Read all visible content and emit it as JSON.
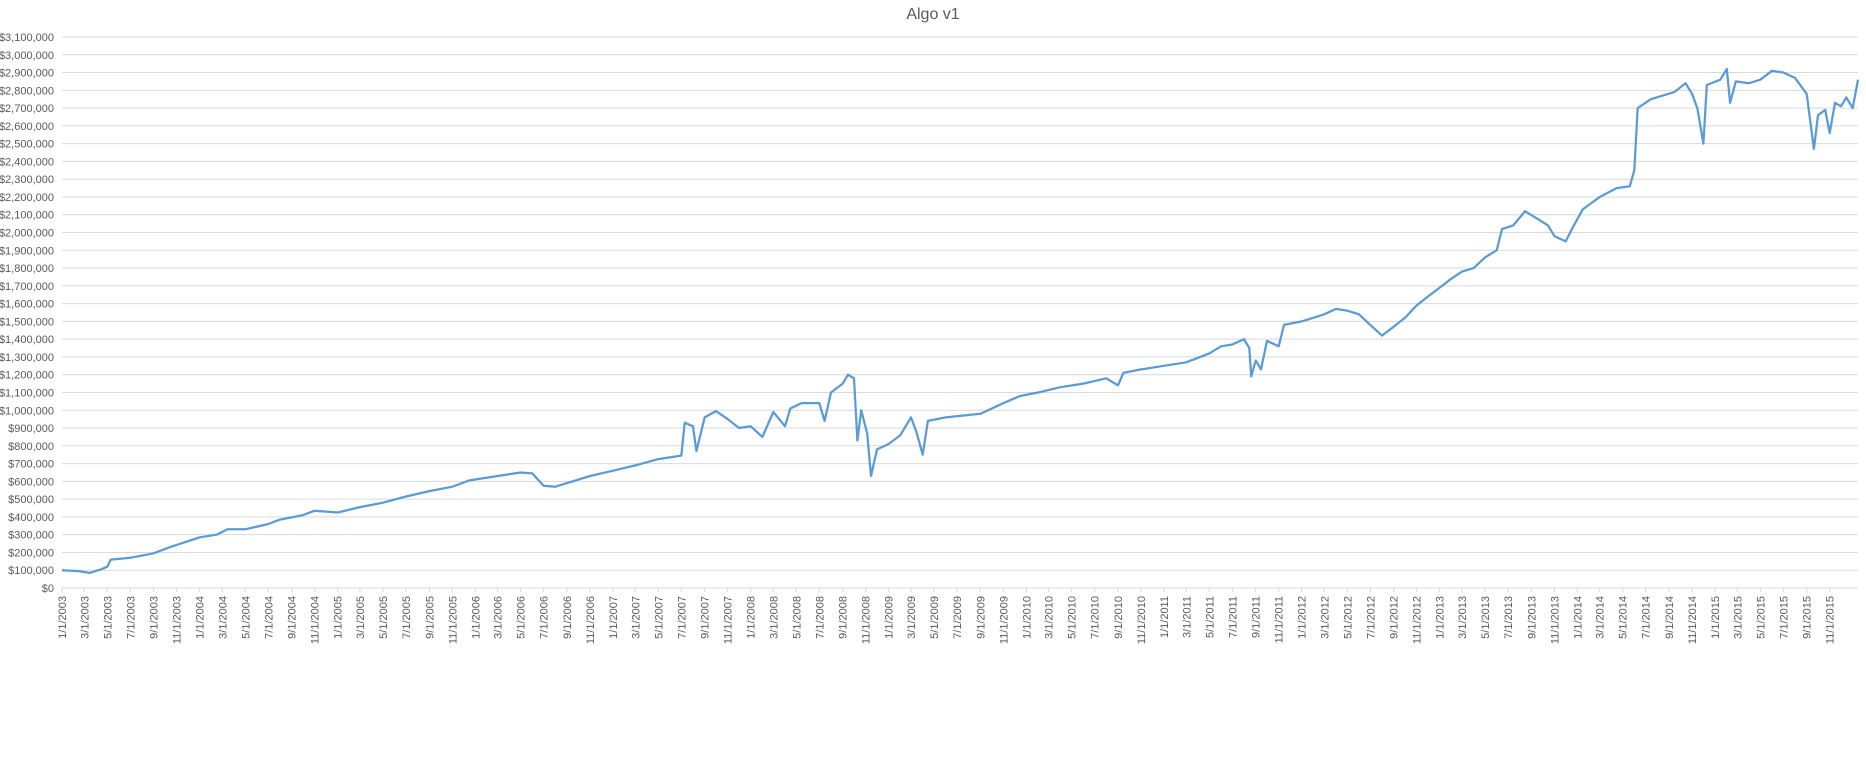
{
  "chart_data": {
    "type": "line",
    "title": "Algo v1",
    "xlabel": "",
    "ylabel": "",
    "ylim": [
      0,
      3100000
    ],
    "grid": true,
    "legend": "none",
    "y_ticks": [
      "$0",
      "$100,000",
      "$200,000",
      "$300,000",
      "$400,000",
      "$500,000",
      "$600,000",
      "$700,000",
      "$800,000",
      "$900,000",
      "$1,000,000",
      "$1,100,000",
      "$1,200,000",
      "$1,300,000",
      "$1,400,000",
      "$1,500,000",
      "$1,600,000",
      "$1,700,000",
      "$1,800,000",
      "$1,900,000",
      "$2,000,000",
      "$2,100,000",
      "$2,200,000",
      "$2,300,000",
      "$2,400,000",
      "$2,500,000",
      "$2,600,000",
      "$2,700,000",
      "$2,800,000",
      "$2,900,000",
      "$3,000,000",
      "$3,100,000"
    ],
    "x_ticks": [
      "1/1/2003",
      "3/1/2003",
      "5/1/2003",
      "7/1/2003",
      "9/1/2003",
      "11/1/2003",
      "1/1/2004",
      "3/1/2004",
      "5/1/2004",
      "7/1/2004",
      "9/1/2004",
      "11/1/2004",
      "1/1/2005",
      "3/1/2005",
      "5/1/2005",
      "7/1/2005",
      "9/1/2005",
      "11/1/2005",
      "1/1/2006",
      "3/1/2006",
      "5/1/2006",
      "7/1/2006",
      "9/1/2006",
      "11/1/2006",
      "1/1/2007",
      "3/1/2007",
      "5/1/2007",
      "7/1/2007",
      "9/1/2007",
      "11/1/2007",
      "1/1/2008",
      "3/1/2008",
      "5/1/2008",
      "7/1/2008",
      "9/1/2008",
      "11/1/2008",
      "1/1/2009",
      "3/1/2009",
      "5/1/2009",
      "7/1/2009",
      "9/1/2009",
      "11/1/2009",
      "1/1/2010",
      "3/1/2010",
      "5/1/2010",
      "7/1/2010",
      "9/1/2010",
      "11/1/2010",
      "1/1/2011",
      "3/1/2011",
      "5/1/2011",
      "7/1/2011",
      "9/1/2011",
      "11/1/2011",
      "1/1/2012",
      "3/1/2012",
      "5/1/2012",
      "7/1/2012",
      "9/1/2012",
      "11/1/2012",
      "1/1/2013",
      "3/1/2013",
      "5/1/2013",
      "7/1/2013",
      "9/1/2013",
      "11/1/2013",
      "1/1/2014",
      "3/1/2014",
      "5/1/2014",
      "7/1/2014",
      "9/1/2014",
      "11/1/2014",
      "1/1/2015",
      "3/1/2015",
      "5/1/2015",
      "7/1/2015",
      "9/1/2015",
      "11/1/2015"
    ],
    "colors": {
      "line": "#5B9BD5",
      "grid": "#D9D9D9",
      "text": "#595959"
    },
    "series": [
      {
        "values": [
          [
            "1/1/2003",
            100000
          ],
          [
            "2/15/2003",
            95000
          ],
          [
            "3/15/2003",
            85000
          ],
          [
            "4/15/2003",
            105000
          ],
          [
            "5/1/2003",
            120000
          ],
          [
            "5/10/2003",
            160000
          ],
          [
            "7/1/2003",
            170000
          ],
          [
            "9/1/2003",
            195000
          ],
          [
            "10/15/2003",
            230000
          ],
          [
            "1/1/2004",
            285000
          ],
          [
            "2/15/2004",
            300000
          ],
          [
            "3/15/2004",
            330000
          ],
          [
            "5/1/2004",
            330000
          ],
          [
            "7/1/2004",
            360000
          ],
          [
            "8/1/2004",
            385000
          ],
          [
            "10/1/2004",
            410000
          ],
          [
            "11/1/2004",
            435000
          ],
          [
            "1/1/2005",
            425000
          ],
          [
            "3/1/2005",
            455000
          ],
          [
            "5/1/2005",
            480000
          ],
          [
            "7/1/2005",
            515000
          ],
          [
            "9/1/2005",
            545000
          ],
          [
            "11/1/2005",
            570000
          ],
          [
            "12/15/2005",
            605000
          ],
          [
            "3/1/2006",
            630000
          ],
          [
            "5/1/2006",
            650000
          ],
          [
            "6/1/2006",
            645000
          ],
          [
            "7/1/2006",
            575000
          ],
          [
            "8/1/2006",
            570000
          ],
          [
            "9/1/2006",
            590000
          ],
          [
            "11/1/2006",
            630000
          ],
          [
            "1/1/2007",
            660000
          ],
          [
            "3/1/2007",
            690000
          ],
          [
            "5/1/2007",
            725000
          ],
          [
            "7/1/2007",
            745000
          ],
          [
            "7/10/2007",
            930000
          ],
          [
            "8/1/2007",
            910000
          ],
          [
            "8/10/2007",
            770000
          ],
          [
            "9/1/2007",
            960000
          ],
          [
            "10/1/2007",
            995000
          ],
          [
            "11/1/2007",
            950000
          ],
          [
            "12/1/2007",
            900000
          ],
          [
            "1/1/2008",
            910000
          ],
          [
            "2/1/2008",
            850000
          ],
          [
            "3/1/2008",
            990000
          ],
          [
            "4/1/2008",
            910000
          ],
          [
            "4/15/2008",
            1010000
          ],
          [
            "5/15/2008",
            1040000
          ],
          [
            "7/1/2008",
            1040000
          ],
          [
            "7/15/2008",
            940000
          ],
          [
            "8/1/2008",
            1100000
          ],
          [
            "9/1/2008",
            1150000
          ],
          [
            "9/15/2008",
            1200000
          ],
          [
            "10/1/2008",
            1180000
          ],
          [
            "10/10/2008",
            830000
          ],
          [
            "10/20/2008",
            1000000
          ],
          [
            "11/5/2008",
            870000
          ],
          [
            "11/15/2008",
            630000
          ],
          [
            "12/1/2008",
            780000
          ],
          [
            "1/1/2009",
            810000
          ],
          [
            "2/1/2009",
            860000
          ],
          [
            "3/1/2009",
            960000
          ],
          [
            "3/15/2009",
            880000
          ],
          [
            "4/1/2009",
            750000
          ],
          [
            "4/15/2009",
            940000
          ],
          [
            "6/1/2009",
            960000
          ],
          [
            "9/1/2009",
            980000
          ],
          [
            "11/1/2009",
            1040000
          ],
          [
            "12/15/2009",
            1080000
          ],
          [
            "2/1/2010",
            1100000
          ],
          [
            "4/1/2010",
            1130000
          ],
          [
            "6/1/2010",
            1150000
          ],
          [
            "8/1/2010",
            1180000
          ],
          [
            "9/1/2010",
            1140000
          ],
          [
            "9/15/2010",
            1210000
          ],
          [
            "11/1/2010",
            1230000
          ],
          [
            "1/1/2011",
            1250000
          ],
          [
            "3/1/2011",
            1270000
          ],
          [
            "5/1/2011",
            1320000
          ],
          [
            "6/1/2011",
            1360000
          ],
          [
            "7/1/2011",
            1370000
          ],
          [
            "8/1/2011",
            1400000
          ],
          [
            "8/15/2011",
            1350000
          ],
          [
            "8/20/2011",
            1190000
          ],
          [
            "9/1/2011",
            1280000
          ],
          [
            "9/15/2011",
            1230000
          ],
          [
            "10/1/2011",
            1390000
          ],
          [
            "11/1/2011",
            1360000
          ],
          [
            "11/15/2011",
            1480000
          ],
          [
            "1/1/2012",
            1500000
          ],
          [
            "3/1/2012",
            1540000
          ],
          [
            "4/1/2012",
            1570000
          ],
          [
            "5/1/2012",
            1560000
          ],
          [
            "6/1/2012",
            1540000
          ],
          [
            "7/1/2012",
            1480000
          ],
          [
            "8/1/2012",
            1420000
          ],
          [
            "9/1/2012",
            1470000
          ],
          [
            "10/1/2012",
            1520000
          ],
          [
            "11/1/2012",
            1590000
          ],
          [
            "12/1/2012",
            1640000
          ],
          [
            "1/1/2013",
            1690000
          ],
          [
            "2/1/2013",
            1740000
          ],
          [
            "3/1/2013",
            1780000
          ],
          [
            "4/1/2013",
            1800000
          ],
          [
            "5/1/2013",
            1860000
          ],
          [
            "6/1/2013",
            1900000
          ],
          [
            "6/15/2013",
            2020000
          ],
          [
            "7/15/2013",
            2040000
          ],
          [
            "8/15/2013",
            2120000
          ],
          [
            "9/15/2013",
            2080000
          ],
          [
            "10/15/2013",
            2040000
          ],
          [
            "11/1/2013",
            1980000
          ],
          [
            "12/1/2013",
            1950000
          ],
          [
            "12/20/2013",
            2030000
          ],
          [
            "1/15/2014",
            2130000
          ],
          [
            "3/1/2014",
            2200000
          ],
          [
            "4/15/2014",
            2250000
          ],
          [
            "5/20/2014",
            2260000
          ],
          [
            "6/1/2014",
            2350000
          ],
          [
            "6/10/2014",
            2700000
          ],
          [
            "7/15/2014",
            2750000
          ],
          [
            "9/15/2014",
            2790000
          ],
          [
            "10/15/2014",
            2840000
          ],
          [
            "11/1/2014",
            2780000
          ],
          [
            "11/15/2014",
            2700000
          ],
          [
            "12/1/2014",
            2500000
          ],
          [
            "12/10/2014",
            2830000
          ],
          [
            "1/15/2015",
            2860000
          ],
          [
            "2/1/2015",
            2920000
          ],
          [
            "2/10/2015",
            2730000
          ],
          [
            "2/25/2015",
            2850000
          ],
          [
            "4/1/2015",
            2840000
          ],
          [
            "5/1/2015",
            2860000
          ],
          [
            "6/1/2015",
            2910000
          ],
          [
            "7/1/2015",
            2900000
          ],
          [
            "8/1/2015",
            2870000
          ],
          [
            "9/1/2015",
            2780000
          ],
          [
            "9/20/2015",
            2470000
          ],
          [
            "10/1/2015",
            2660000
          ],
          [
            "10/20/2015",
            2690000
          ],
          [
            "11/1/2015",
            2560000
          ],
          [
            "11/15/2015",
            2730000
          ],
          [
            "12/1/2015",
            2710000
          ],
          [
            "12/15/2015",
            2760000
          ],
          [
            "1/1/2016",
            2700000
          ],
          [
            "1/15/2016",
            2860000
          ]
        ]
      }
    ]
  }
}
